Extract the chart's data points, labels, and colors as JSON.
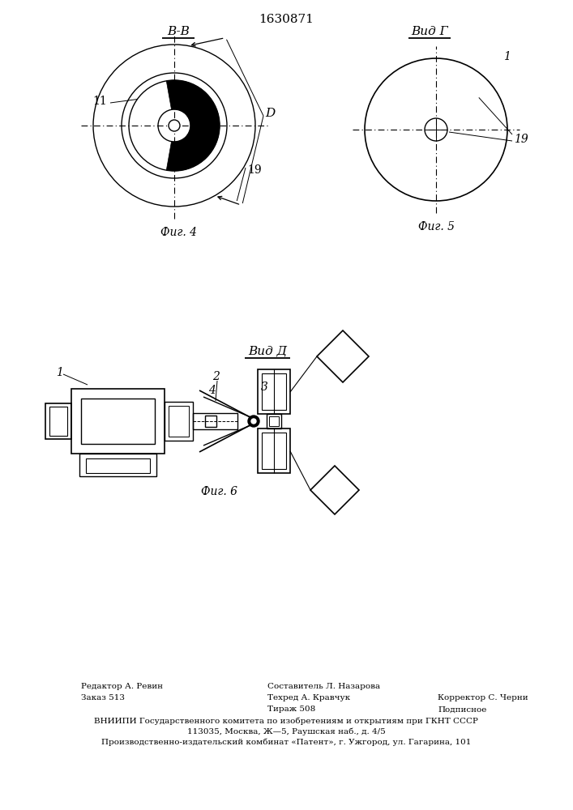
{
  "patent_number": "1630871",
  "bg": "#ffffff",
  "lc": "#000000",
  "fig4_label": "B-B",
  "fig5_label": "Вид Г",
  "fig6_label": "Вид Д",
  "cap4": "Фиг. 4",
  "cap5": "Фиг. 5",
  "cap6": "Фиг. 6",
  "footer1a": "Редактор А. Ревин",
  "footer1b": "Составитель Л. Назарова",
  "footer2a": "Заказ 513",
  "footer2b": "Техред А. Кравчук",
  "footer2c": "Корректор С. Черни",
  "footer3a": "Тираж 508",
  "footer3b": "Подписное",
  "footer4": "ВНИИПИ Государственного комитета по изобретениям и открытиям при ГКНТ СССР",
  "footer5": "113035, Москва, Ж—5, Раушская наб., д. 4/5",
  "footer6": "Производственно-издательский комбинат «Патент», г. Ужгород, ул. Гагарина, 101"
}
